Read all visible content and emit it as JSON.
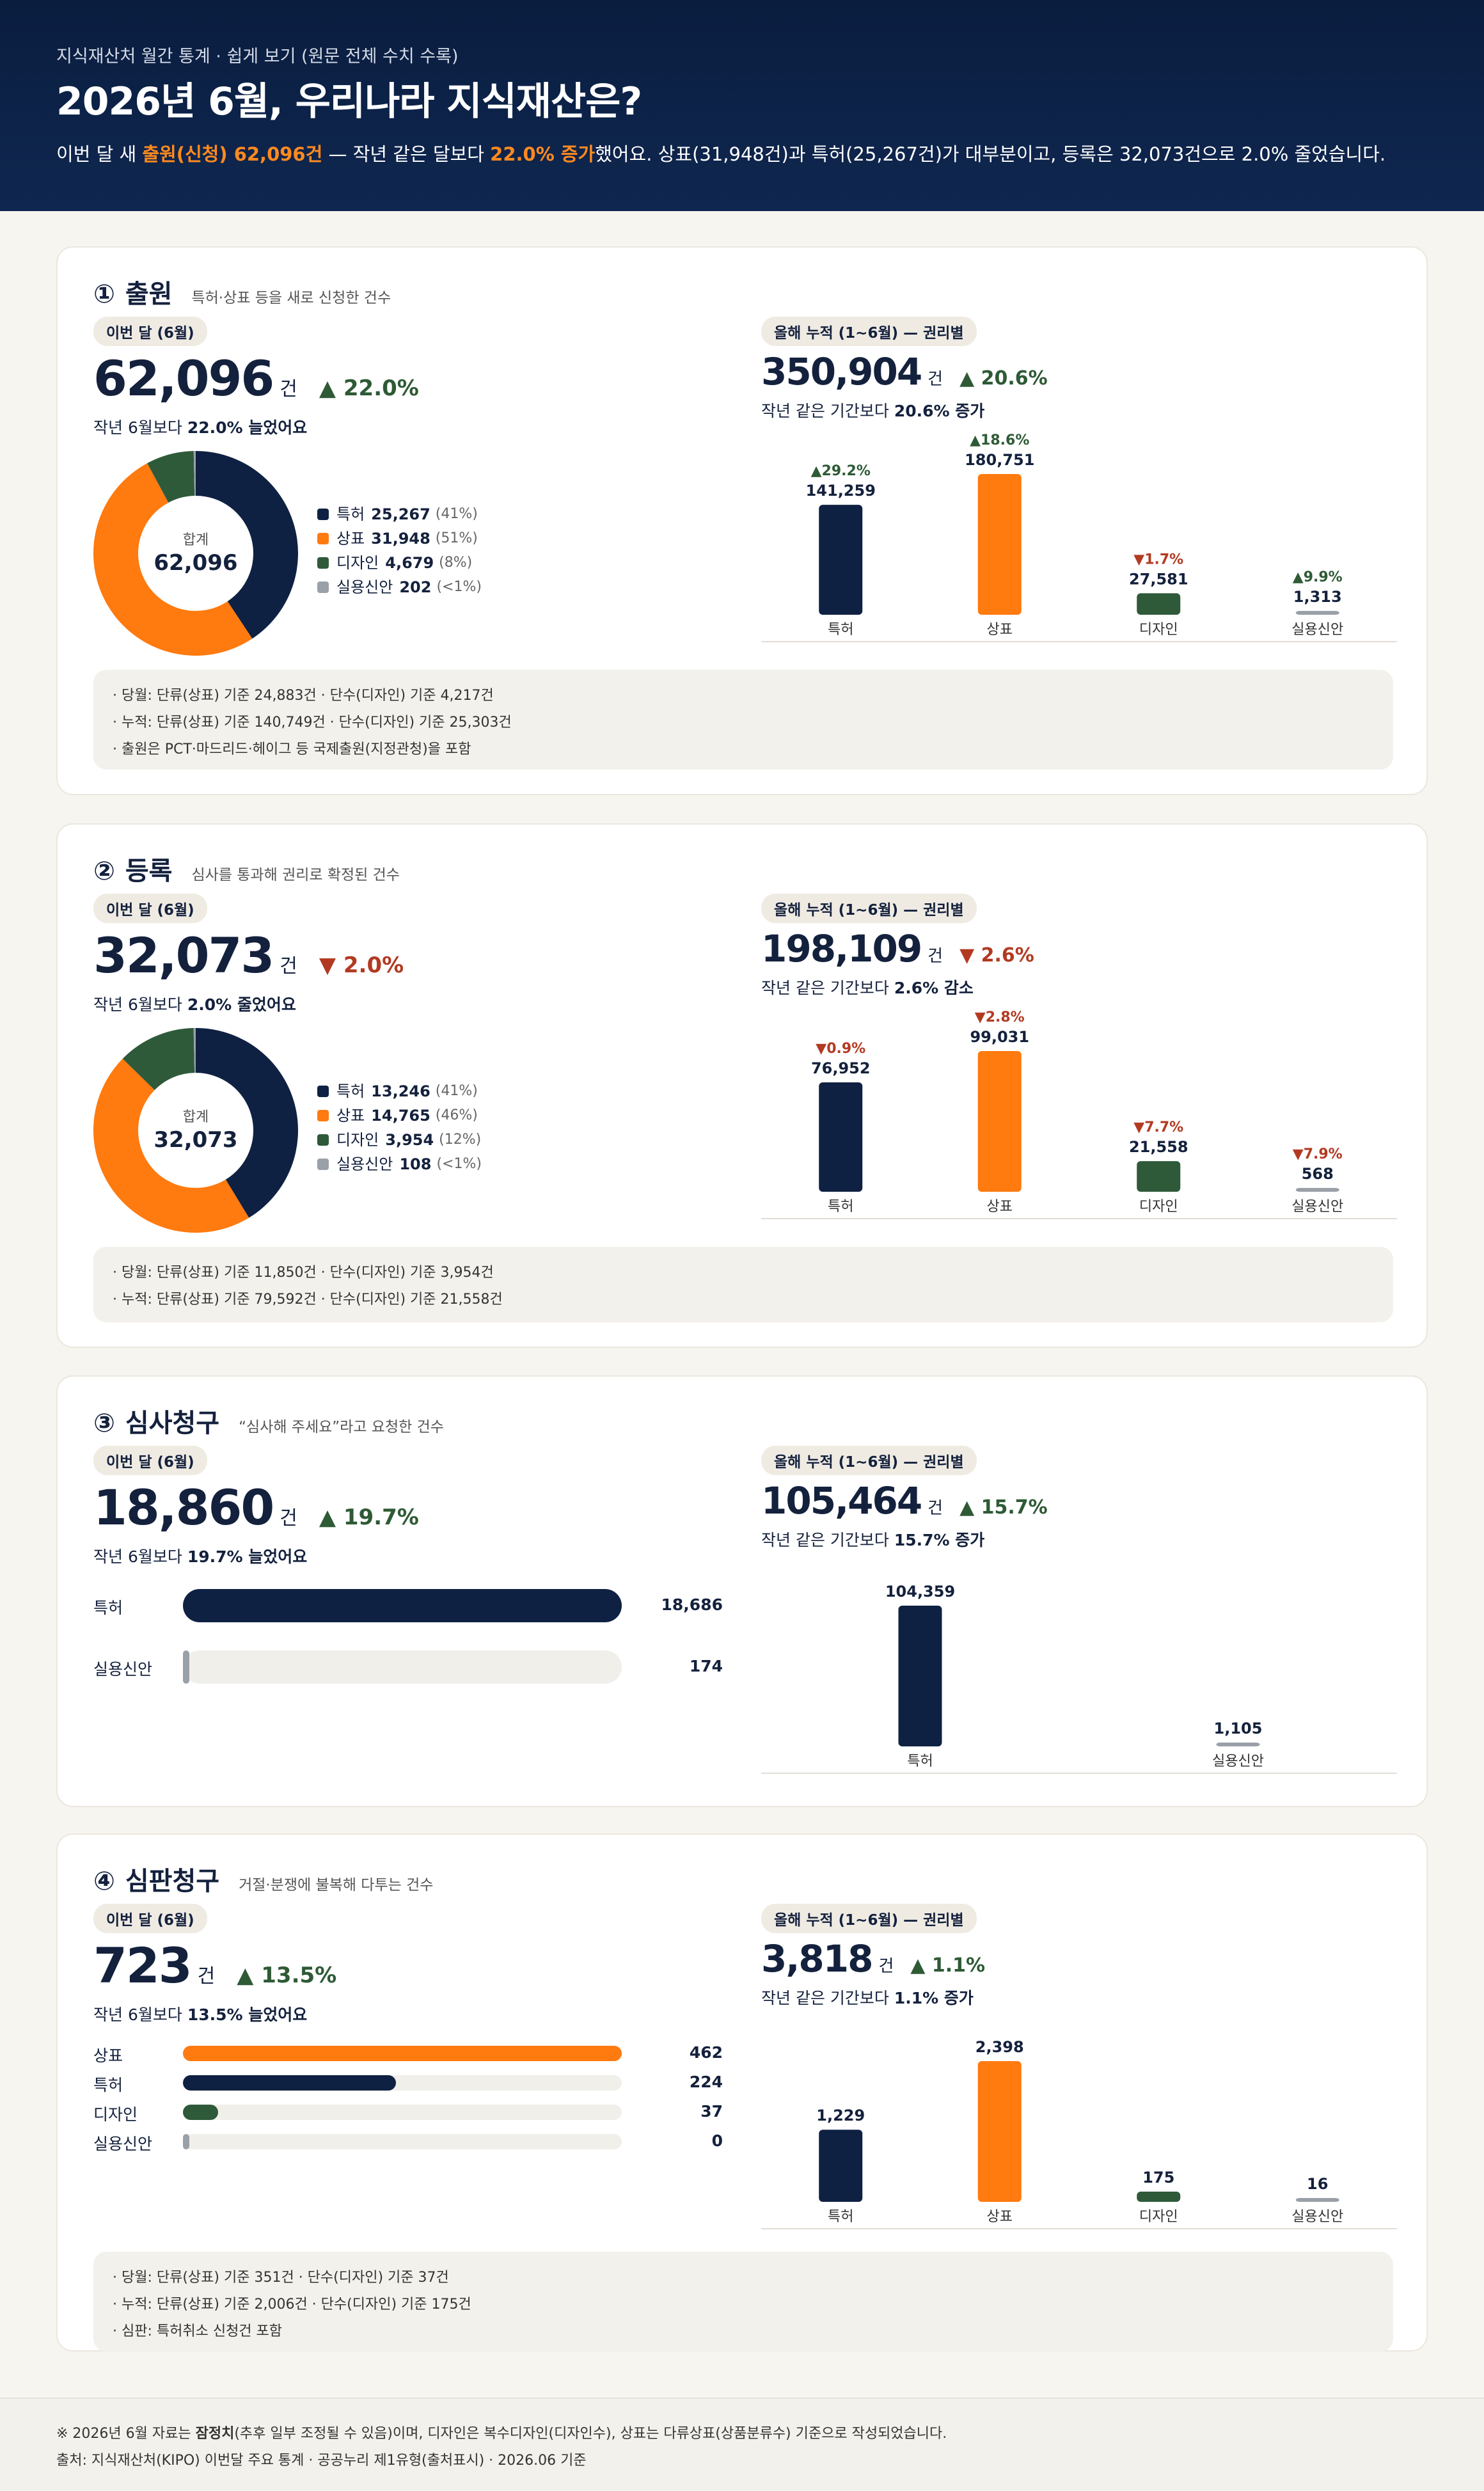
{
  "header": {
    "kicker": "지식재산처 월간 통계 · 쉽게 보기 (원문 전체 수치 수록)",
    "title": "2026년 6월, 우리나라 지식재산은?",
    "lead_pre": "이번 달 새 ",
    "lead_hl1": "출원(신청) 62,096건",
    "lead_mid": " — 작년 같은 달보다 ",
    "lead_hl2": "22.0% 증가",
    "lead_post": "했어요. 상표(31,948건)과 특허(25,267건)가 대부분이고, 등록은 32,073건으로 2.0% 줄었습니다."
  },
  "colors": {
    "patent": "#0f2142",
    "trademark": "#ff7a0f",
    "design": "#2e5a3a",
    "utility": "#9aa0a8",
    "up": "#2e5a35",
    "down": "#b23a22"
  },
  "sections": [
    {
      "num": "①",
      "name": "출원",
      "desc": "특허·상표 등을 새로 신청한 건수",
      "month_pill": "이번 달 (6월)",
      "month_value": "62,096",
      "unit": "건",
      "month_change": "▲ 22.0%",
      "month_dir": "up",
      "month_sub_pre": "작년 6월보다 ",
      "month_sub_b": "22.0% 늘었어요",
      "donut_center_label": "합계",
      "donut_center_value": "62,096",
      "donut": [
        {
          "label": "특허",
          "value": "25,267",
          "pct": "(41%)",
          "num": 25267,
          "color": "#0f2142"
        },
        {
          "label": "상표",
          "value": "31,948",
          "pct": "(51%)",
          "num": 31948,
          "color": "#ff7a0f"
        },
        {
          "label": "디자인",
          "value": "4,679",
          "pct": "(8%)",
          "num": 4679,
          "color": "#2e5a3a"
        },
        {
          "label": "실용신안",
          "value": "202",
          "pct": "(<1%)",
          "num": 202,
          "color": "#9aa0a8"
        }
      ],
      "ytd_pill": "올해 누적 (1~6월) — 권리별",
      "ytd_value": "350,904",
      "ytd_change": "▲ 20.6%",
      "ytd_dir": "up",
      "ytd_sub_pre": "작년 같은 기간보다 ",
      "ytd_sub_b": "20.6% 증가",
      "ytd_bars": [
        {
          "label": "특허",
          "value": "141,259",
          "num": 141259,
          "change": "▲29.2%",
          "dir": "up",
          "color": "#0f2142"
        },
        {
          "label": "상표",
          "value": "180,751",
          "num": 180751,
          "change": "▲18.6%",
          "dir": "up",
          "color": "#ff7a0f"
        },
        {
          "label": "디자인",
          "value": "27,581",
          "num": 27581,
          "change": "▼1.7%",
          "dir": "down",
          "color": "#2e5a3a"
        },
        {
          "label": "실용신안",
          "value": "1,313",
          "num": 1313,
          "change": "▲9.9%",
          "dir": "up",
          "color": "#9aa0a8"
        }
      ],
      "notes": [
        "· 당월: 단류(상표) 기준 24,883건 · 단수(디자인) 기준 4,217건",
        "· 누적: 단류(상표) 기준 140,749건 · 단수(디자인) 기준 25,303건",
        "· 출원은 PCT·마드리드·헤이그 등 국제출원(지정관청)을 포함"
      ]
    },
    {
      "num": "②",
      "name": "등록",
      "desc": "심사를 통과해 권리로 확정된 건수",
      "month_pill": "이번 달 (6월)",
      "month_value": "32,073",
      "unit": "건",
      "month_change": "▼ 2.0%",
      "month_dir": "down",
      "month_sub_pre": "작년 6월보다 ",
      "month_sub_b": "2.0% 줄었어요",
      "donut_center_label": "합계",
      "donut_center_value": "32,073",
      "donut": [
        {
          "label": "특허",
          "value": "13,246",
          "pct": "(41%)",
          "num": 13246,
          "color": "#0f2142"
        },
        {
          "label": "상표",
          "value": "14,765",
          "pct": "(46%)",
          "num": 14765,
          "color": "#ff7a0f"
        },
        {
          "label": "디자인",
          "value": "3,954",
          "pct": "(12%)",
          "num": 3954,
          "color": "#2e5a3a"
        },
        {
          "label": "실용신안",
          "value": "108",
          "pct": "(<1%)",
          "num": 108,
          "color": "#9aa0a8"
        }
      ],
      "ytd_pill": "올해 누적 (1~6월) — 권리별",
      "ytd_value": "198,109",
      "ytd_change": "▼ 2.6%",
      "ytd_dir": "down",
      "ytd_sub_pre": "작년 같은 기간보다 ",
      "ytd_sub_b": "2.6% 감소",
      "ytd_bars": [
        {
          "label": "특허",
          "value": "76,952",
          "num": 76952,
          "change": "▼0.9%",
          "dir": "down",
          "color": "#0f2142"
        },
        {
          "label": "상표",
          "value": "99,031",
          "num": 99031,
          "change": "▼2.8%",
          "dir": "down",
          "color": "#ff7a0f"
        },
        {
          "label": "디자인",
          "value": "21,558",
          "num": 21558,
          "change": "▼7.7%",
          "dir": "down",
          "color": "#2e5a3a"
        },
        {
          "label": "실용신안",
          "value": "568",
          "num": 568,
          "change": "▼7.9%",
          "dir": "down",
          "color": "#9aa0a8"
        }
      ],
      "notes": [
        "· 당월: 단류(상표) 기준 11,850건 · 단수(디자인) 기준 3,954건",
        "· 누적: 단류(상표) 기준 79,592건 · 단수(디자인) 기준 21,558건"
      ]
    },
    {
      "num": "③",
      "name": "심사청구",
      "desc": "“심사해 주세요”라고 요청한 건수",
      "month_pill": "이번 달 (6월)",
      "month_value": "18,860",
      "unit": "건",
      "month_change": "▲ 19.7%",
      "month_dir": "up",
      "month_sub_pre": "작년 6월보다 ",
      "month_sub_b": "19.7% 늘었어요",
      "hbars": [
        {
          "label": "특허",
          "value": "18,686",
          "num": 18686,
          "color": "#0f2142"
        },
        {
          "label": "실용신안",
          "value": "174",
          "num": 174,
          "color": "#9aa0a8"
        }
      ],
      "ytd_pill": "올해 누적 (1~6월) — 권리별",
      "ytd_value": "105,464",
      "ytd_change": "▲ 15.7%",
      "ytd_dir": "up",
      "ytd_sub_pre": "작년 같은 기간보다 ",
      "ytd_sub_b": "15.7% 증가",
      "ytd_bars": [
        {
          "label": "특허",
          "value": "104,359",
          "num": 104359,
          "change": "",
          "dir": "up",
          "color": "#0f2142"
        },
        {
          "label": "실용신안",
          "value": "1,105",
          "num": 1105,
          "change": "",
          "dir": "up",
          "color": "#9aa0a8"
        }
      ]
    },
    {
      "num": "④",
      "name": "심판청구",
      "desc": "거절·분쟁에 불복해 다투는 건수",
      "month_pill": "이번 달 (6월)",
      "month_value": "723",
      "unit": "건",
      "month_change": "▲ 13.5%",
      "month_dir": "up",
      "month_sub_pre": "작년 6월보다 ",
      "month_sub_b": "13.5% 늘었어요",
      "hbars": [
        {
          "label": "상표",
          "value": "462",
          "num": 462,
          "color": "#ff7a0f"
        },
        {
          "label": "특허",
          "value": "224",
          "num": 224,
          "color": "#0f2142"
        },
        {
          "label": "디자인",
          "value": "37",
          "num": 37,
          "color": "#2e5a3a"
        },
        {
          "label": "실용신안",
          "value": "0",
          "num": 0,
          "color": "#9aa0a8"
        }
      ],
      "ytd_pill": "올해 누적 (1~6월) — 권리별",
      "ytd_value": "3,818",
      "ytd_change": "▲ 1.1%",
      "ytd_dir": "up",
      "ytd_sub_pre": "작년 같은 기간보다 ",
      "ytd_sub_b": "1.1% 증가",
      "ytd_bars": [
        {
          "label": "특허",
          "value": "1,229",
          "num": 1229,
          "change": "",
          "dir": "up",
          "color": "#0f2142"
        },
        {
          "label": "상표",
          "value": "2,398",
          "num": 2398,
          "change": "",
          "dir": "up",
          "color": "#ff7a0f"
        },
        {
          "label": "디자인",
          "value": "175",
          "num": 175,
          "change": "",
          "dir": "up",
          "color": "#2e5a3a"
        },
        {
          "label": "실용신안",
          "value": "16",
          "num": 16,
          "change": "",
          "dir": "up",
          "color": "#9aa0a8"
        }
      ],
      "notes": [
        "· 당월: 단류(상표) 기준 351건 · 단수(디자인) 기준 37건",
        "· 누적: 단류(상표) 기준 2,006건 · 단수(디자인) 기준 175건",
        "· 심판: 특허취소 신청건 포함"
      ]
    }
  ],
  "footer": {
    "line1_pre": "※ 2026년 6월 자료는 ",
    "line1_b": "잠정치",
    "line1_post": "(추후 일부 조정될 수 있음)이며, 디자인은 복수디자인(디자인수), 상표는 다류상표(상품분류수) 기준으로 작성되었습니다.",
    "line2": "출처: 지식재산처(KIPO) 이번달 주요 통계 · 공공누리 제1유형(출처표시) · 2026.06 기준"
  }
}
